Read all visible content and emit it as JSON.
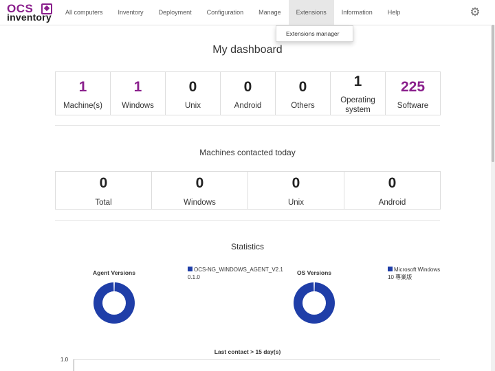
{
  "logo": {
    "line1": "OCS",
    "line2": "inventory"
  },
  "nav": {
    "items": [
      "All computers",
      "Inventory",
      "Deployment",
      "Configuration",
      "Manage",
      "Extensions",
      "Information",
      "Help"
    ],
    "active": "Extensions",
    "settings_icon": "gear-icon"
  },
  "dropdown": {
    "item": "Extensions manager"
  },
  "dashboard": {
    "title": "My dashboard",
    "tiles": [
      {
        "value": "1",
        "label": "Machine(s)"
      },
      {
        "value": "1",
        "label": "Windows"
      },
      {
        "value": "0",
        "label": "Unix"
      },
      {
        "value": "0",
        "label": "Android"
      },
      {
        "value": "0",
        "label": "Others"
      },
      {
        "value": "1",
        "label": "Operating system"
      },
      {
        "value": "225",
        "label": "Software"
      }
    ]
  },
  "contacted": {
    "title": "Machines contacted today",
    "tiles": [
      {
        "value": "0",
        "label": "Total"
      },
      {
        "value": "0",
        "label": "Windows"
      },
      {
        "value": "0",
        "label": "Unix"
      },
      {
        "value": "0",
        "label": "Android"
      }
    ]
  },
  "statistics": {
    "title": "Statistics",
    "agent": {
      "title": "Agent Versions",
      "legend": "OCS-NG_WINDOWS_AGENT_V2.10.1.0"
    },
    "os": {
      "title": "OS Versions",
      "legend": "Microsoft Windows 10 專業版"
    },
    "last_contact": {
      "title": "Last contact > 15 day(s)",
      "y_tick": "1.0"
    }
  },
  "colors": {
    "accent": "#8a1f8c",
    "donut": "#1f3ea8"
  },
  "chart_data": [
    {
      "type": "pie",
      "title": "Agent Versions",
      "categories": [
        "OCS-NG_WINDOWS_AGENT_V2.10.1.0"
      ],
      "values": [
        1
      ]
    },
    {
      "type": "pie",
      "title": "OS Versions",
      "categories": [
        "Microsoft Windows 10 專業版"
      ],
      "values": [
        1
      ]
    },
    {
      "type": "bar",
      "title": "Last contact > 15 day(s)",
      "categories": [],
      "values": [],
      "ylim": [
        0,
        1.0
      ]
    }
  ]
}
